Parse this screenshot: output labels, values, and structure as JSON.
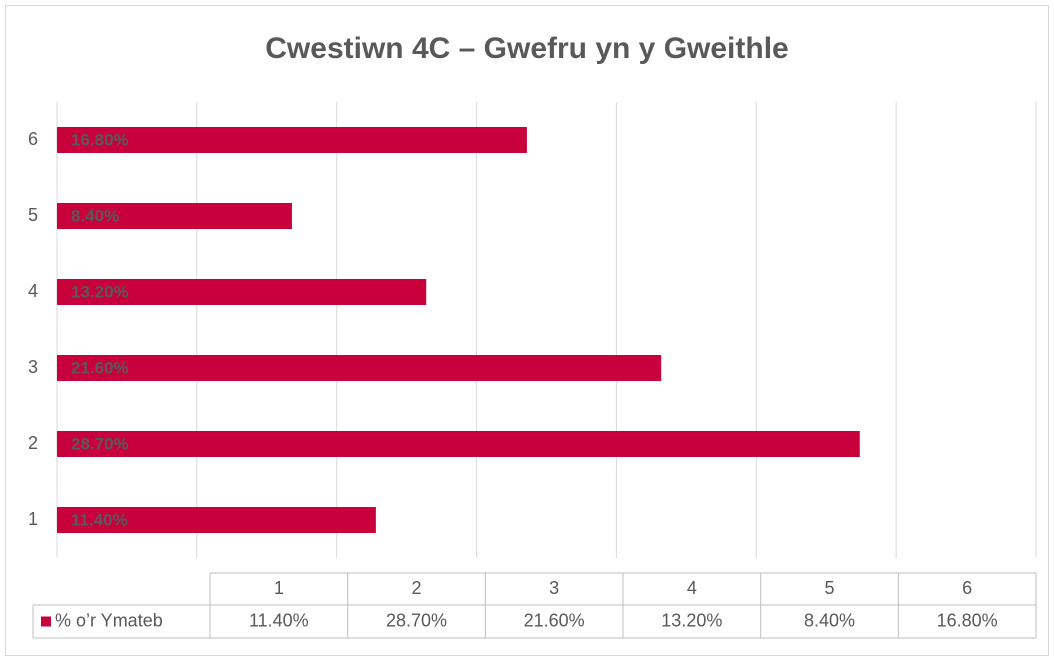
{
  "chart_data": {
    "type": "bar",
    "orientation": "horizontal",
    "title": "Cwestiwn 4C – Gwefru yn y Gweithle",
    "categories": [
      "1",
      "2",
      "3",
      "4",
      "5",
      "6"
    ],
    "series": [
      {
        "name": "% o’r Ymateb",
        "color": "#c8003c",
        "values": [
          11.4,
          28.7,
          21.6,
          13.2,
          8.4,
          16.8
        ],
        "value_labels": [
          "11.40%",
          "28.70%",
          "21.60%",
          "13.20%",
          "8.40%",
          "16.80%"
        ]
      }
    ],
    "xlim": [
      0,
      35
    ],
    "xticks": [
      0,
      5,
      10,
      15,
      20,
      25,
      30,
      35
    ],
    "grid": true,
    "data_table": true
  }
}
